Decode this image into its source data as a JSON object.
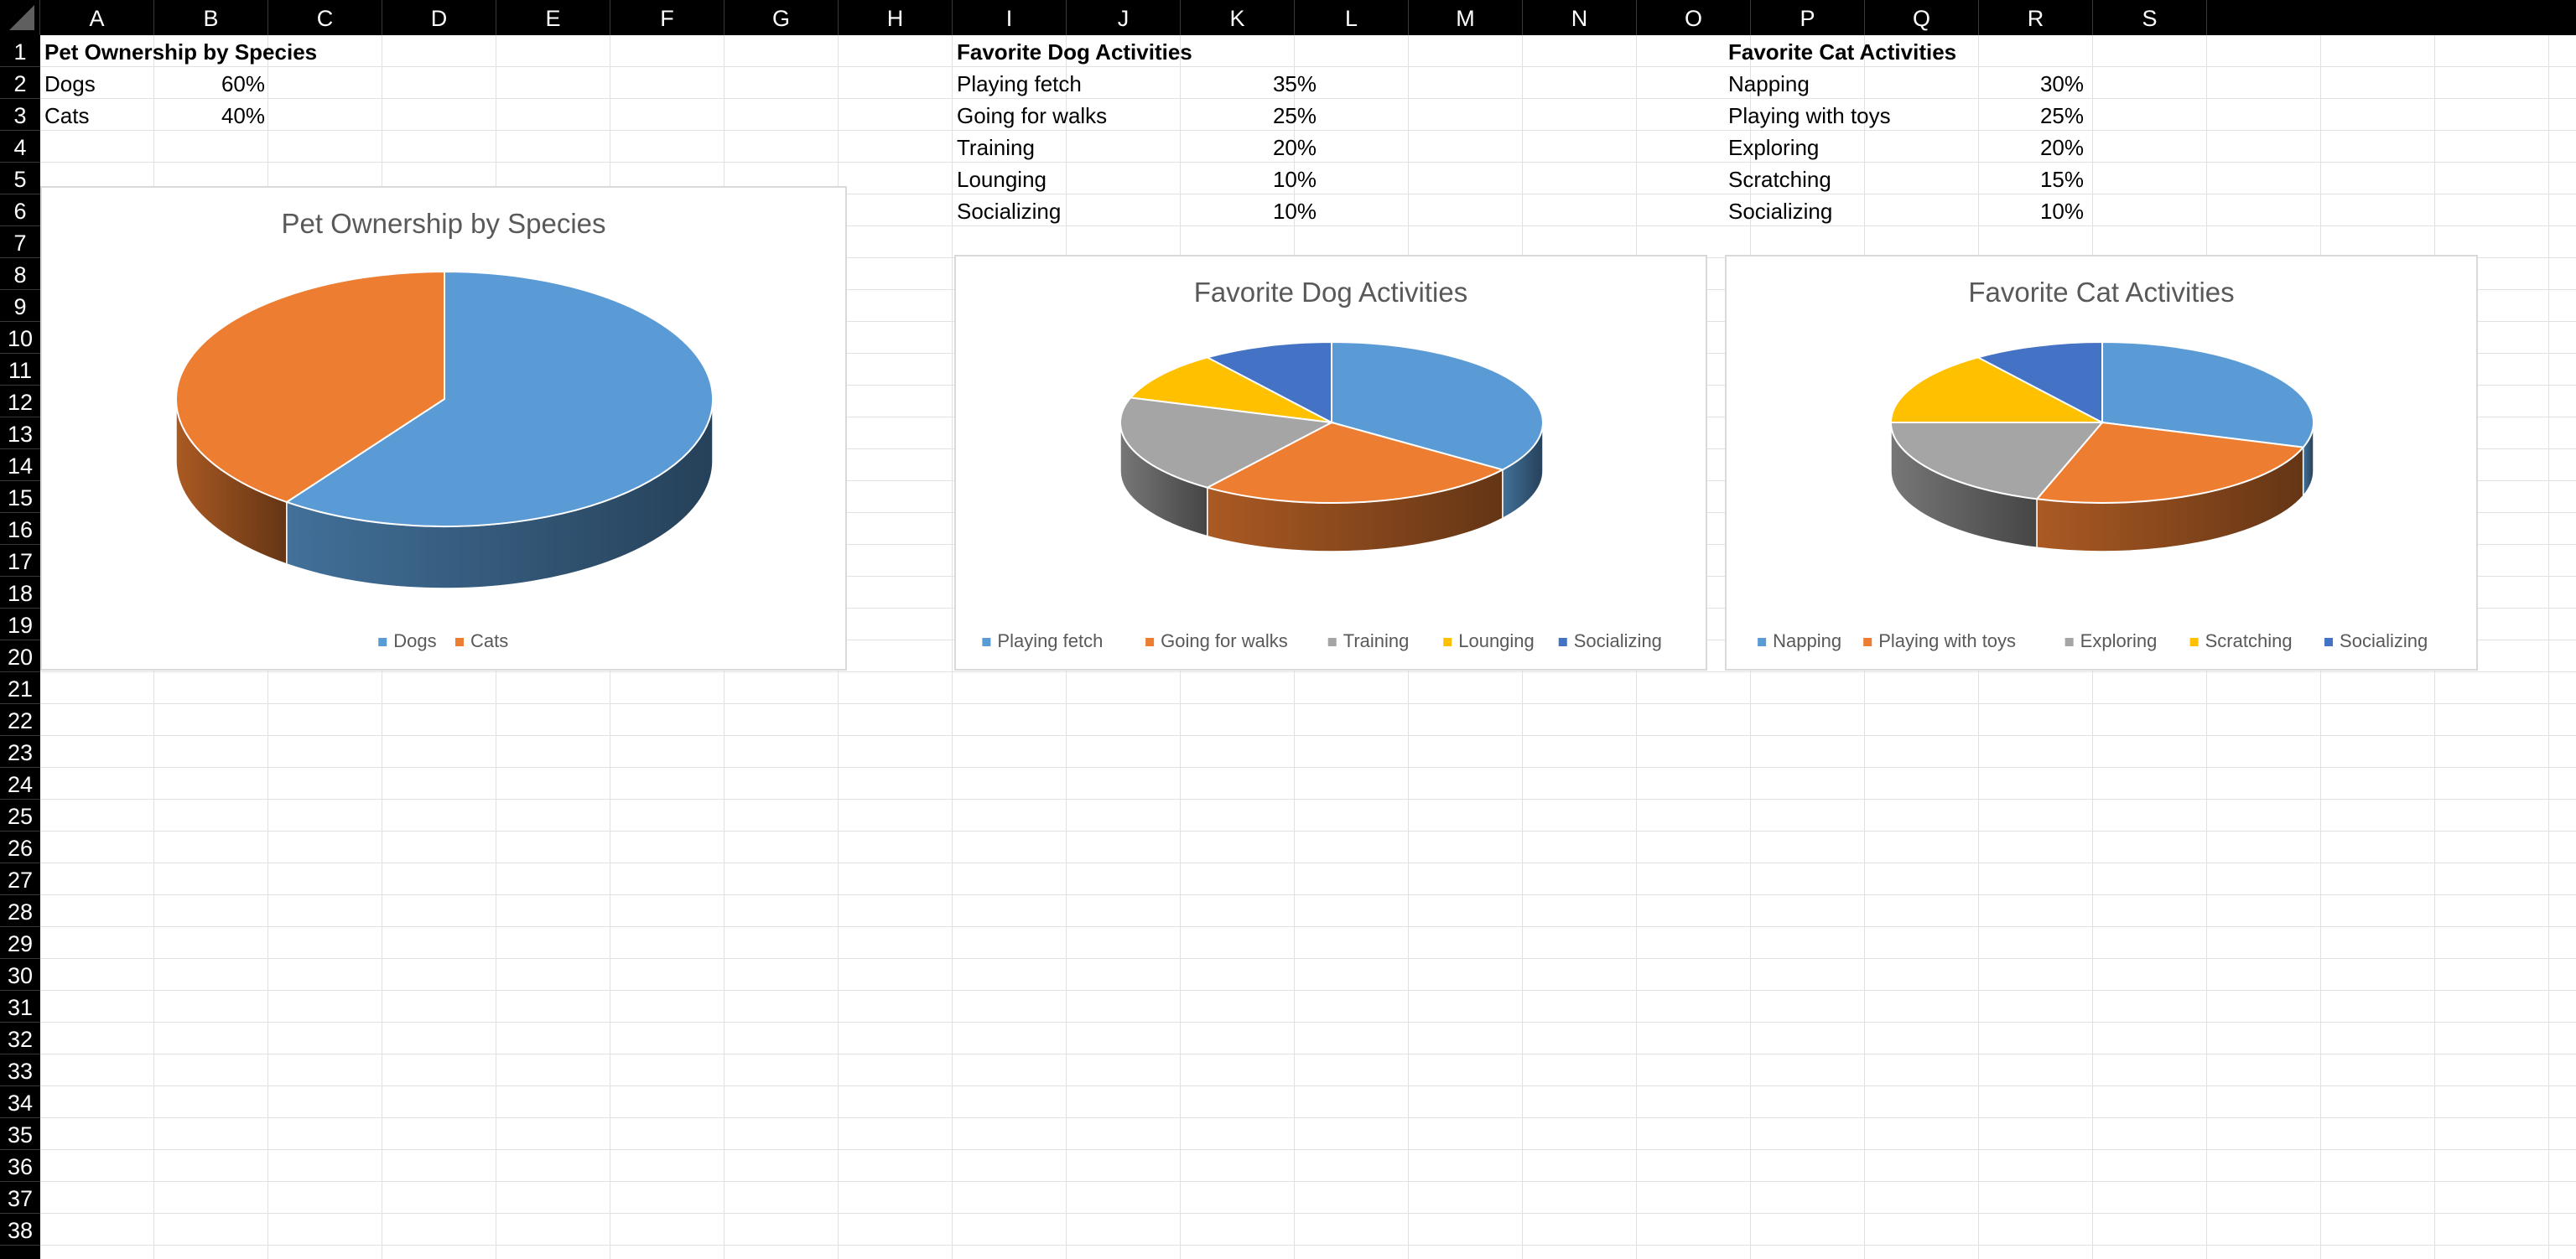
{
  "columns": [
    "A",
    "B",
    "C",
    "D",
    "E",
    "F",
    "G",
    "H",
    "I",
    "J",
    "K",
    "L",
    "M",
    "N",
    "O",
    "P",
    "Q",
    "R",
    "S"
  ],
  "rows": [
    "1",
    "2",
    "3",
    "4",
    "5",
    "6",
    "7",
    "8",
    "9",
    "10",
    "11",
    "12",
    "13",
    "14",
    "15",
    "16",
    "17",
    "18",
    "19",
    "20",
    "21",
    "22",
    "23",
    "24",
    "25",
    "26",
    "27",
    "28",
    "29",
    "30",
    "31",
    "32",
    "33",
    "34",
    "35",
    "36",
    "37",
    "38"
  ],
  "tables": {
    "species": {
      "header": "Pet Ownership by Species",
      "rows": [
        {
          "label": "Dogs",
          "value": "60%"
        },
        {
          "label": "Cats",
          "value": "40%"
        }
      ]
    },
    "dog": {
      "header": "Favorite Dog Activities",
      "rows": [
        {
          "label": "Playing fetch",
          "value": "35%"
        },
        {
          "label": "Going for walks",
          "value": "25%"
        },
        {
          "label": "Training",
          "value": "20%"
        },
        {
          "label": "Lounging",
          "value": "10%"
        },
        {
          "label": "Socializing",
          "value": "10%"
        }
      ]
    },
    "cat": {
      "header": "Favorite Cat Activities",
      "rows": [
        {
          "label": "Napping",
          "value": "30%"
        },
        {
          "label": "Playing with toys",
          "value": "25%"
        },
        {
          "label": "Exploring",
          "value": "20%"
        },
        {
          "label": "Scratching",
          "value": "15%"
        },
        {
          "label": "Socializing",
          "value": "10%"
        }
      ]
    }
  },
  "chart_data": [
    {
      "type": "pie",
      "title": "Pet Ownership by Species",
      "categories": [
        "Dogs",
        "Cats"
      ],
      "values": [
        60,
        40
      ],
      "colors": [
        "#5b9bd5",
        "#ed7d31"
      ],
      "legend": "bottom"
    },
    {
      "type": "pie",
      "title": "Favorite Dog Activities",
      "categories": [
        "Playing fetch",
        "Going for walks",
        "Training",
        "Lounging",
        "Socializing"
      ],
      "values": [
        35,
        25,
        20,
        10,
        10
      ],
      "colors": [
        "#5b9bd5",
        "#ed7d31",
        "#a5a5a5",
        "#ffc000",
        "#4472c4"
      ],
      "legend": "bottom"
    },
    {
      "type": "pie",
      "title": "Favorite Cat Activities",
      "categories": [
        "Napping",
        "Playing with toys",
        "Exploring",
        "Scratching",
        "Socializing"
      ],
      "values": [
        30,
        25,
        20,
        15,
        10
      ],
      "colors": [
        "#5b9bd5",
        "#ed7d31",
        "#a5a5a5",
        "#ffc000",
        "#4472c4"
      ],
      "legend": "bottom"
    }
  ]
}
